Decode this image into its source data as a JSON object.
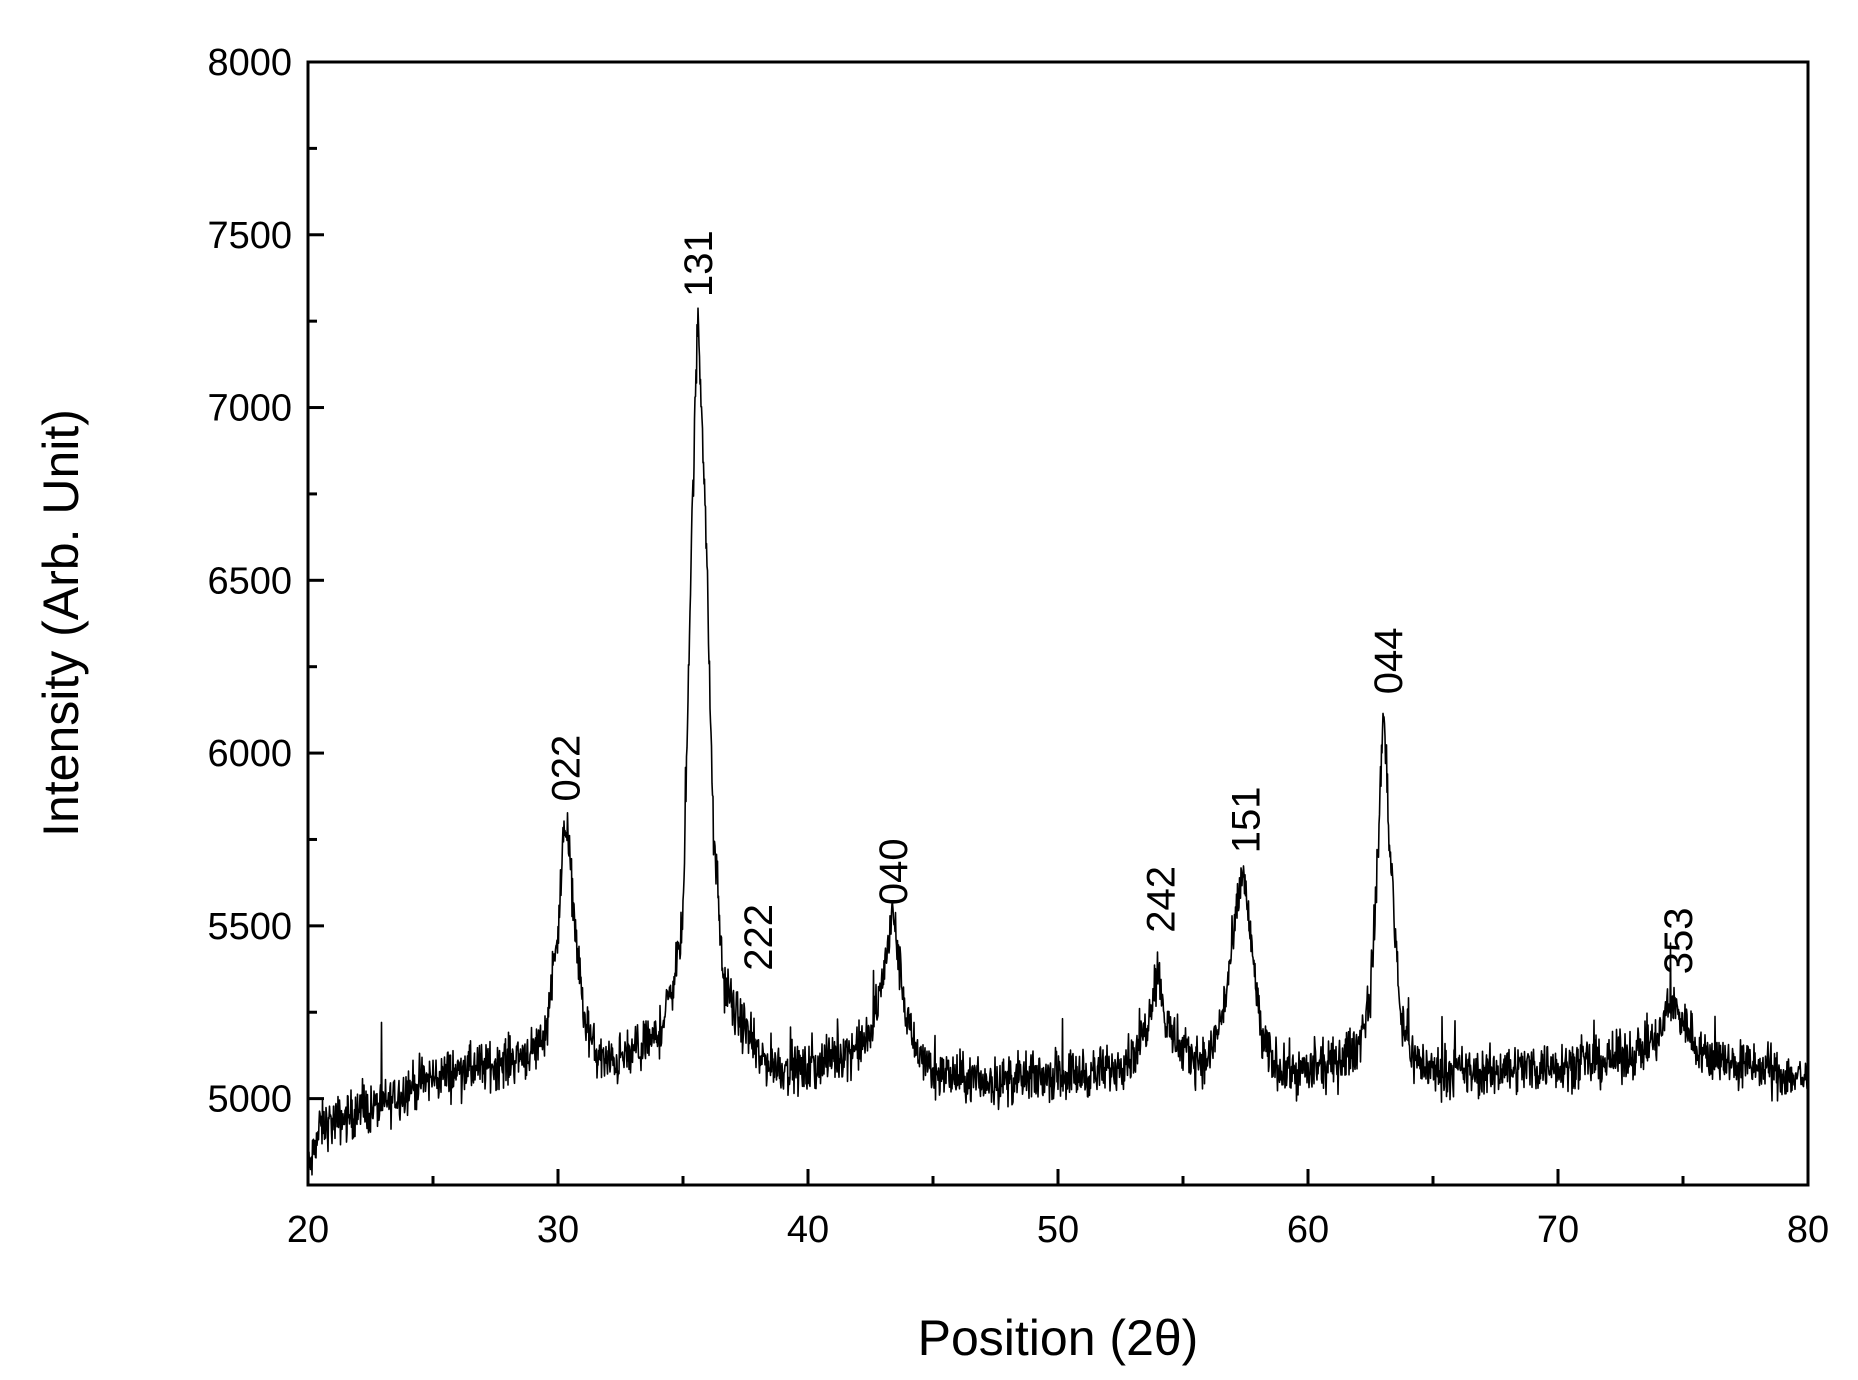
{
  "chart_data": {
    "type": "line",
    "title": "",
    "xlabel": "Position (2θ)",
    "ylabel": "Intensity (Arb. Unit)",
    "xlim": [
      20,
      80
    ],
    "ylim": [
      4750,
      8000
    ],
    "x_ticks": [
      20,
      30,
      40,
      50,
      60,
      70,
      80
    ],
    "y_ticks": [
      5000,
      5500,
      6000,
      6500,
      7000,
      7500,
      8000
    ],
    "grid": false,
    "line_color": "#000000",
    "baseline": [
      [
        20.0,
        4780
      ],
      [
        20.5,
        4920
      ],
      [
        21,
        4930
      ],
      [
        22,
        4960
      ],
      [
        23,
        4980
      ],
      [
        24,
        5030
      ],
      [
        25,
        5060
      ],
      [
        26,
        5080
      ],
      [
        27,
        5090
      ],
      [
        28,
        5110
      ],
      [
        29,
        5140
      ],
      [
        29.5,
        5190
      ],
      [
        30.0,
        5500
      ],
      [
        30.3,
        5820
      ],
      [
        30.6,
        5580
      ],
      [
        31.0,
        5250
      ],
      [
        31.5,
        5130
      ],
      [
        32,
        5100
      ],
      [
        33,
        5130
      ],
      [
        34,
        5180
      ],
      [
        34.5,
        5300
      ],
      [
        35.0,
        5500
      ],
      [
        35.3,
        6500
      ],
      [
        35.6,
        7280
      ],
      [
        35.9,
        6700
      ],
      [
        36.2,
        5800
      ],
      [
        36.6,
        5350
      ],
      [
        37.0,
        5260
      ],
      [
        37.5,
        5200
      ],
      [
        38,
        5120
      ],
      [
        39,
        5090
      ],
      [
        40,
        5080
      ],
      [
        41,
        5120
      ],
      [
        42,
        5150
      ],
      [
        42.5,
        5180
      ],
      [
        43.0,
        5350
      ],
      [
        43.4,
        5540
      ],
      [
        43.8,
        5300
      ],
      [
        44.2,
        5150
      ],
      [
        45,
        5080
      ],
      [
        46,
        5060
      ],
      [
        47,
        5050
      ],
      [
        48,
        5050
      ],
      [
        49,
        5060
      ],
      [
        50,
        5070
      ],
      [
        51,
        5070
      ],
      [
        52,
        5080
      ],
      [
        53,
        5130
      ],
      [
        53.5,
        5200
      ],
      [
        54.0,
        5380
      ],
      [
        54.3,
        5220
      ],
      [
        55,
        5130
      ],
      [
        56,
        5110
      ],
      [
        56.6,
        5250
      ],
      [
        57.0,
        5450
      ],
      [
        57.4,
        5670
      ],
      [
        57.8,
        5400
      ],
      [
        58.2,
        5150
      ],
      [
        59,
        5080
      ],
      [
        60,
        5080
      ],
      [
        61,
        5100
      ],
      [
        62,
        5150
      ],
      [
        62.5,
        5300
      ],
      [
        62.8,
        5700
      ],
      [
        63.0,
        6140
      ],
      [
        63.3,
        5700
      ],
      [
        63.7,
        5250
      ],
      [
        64.2,
        5120
      ],
      [
        65,
        5080
      ],
      [
        66,
        5080
      ],
      [
        67,
        5070
      ],
      [
        68,
        5090
      ],
      [
        69,
        5090
      ],
      [
        70,
        5100
      ],
      [
        71,
        5100
      ],
      [
        72,
        5110
      ],
      [
        73,
        5130
      ],
      [
        74,
        5170
      ],
      [
        74.5,
        5280
      ],
      [
        75.0,
        5230
      ],
      [
        75.5,
        5160
      ],
      [
        76,
        5120
      ],
      [
        77,
        5100
      ],
      [
        78,
        5090
      ],
      [
        79,
        5070
      ],
      [
        80,
        5060
      ]
    ],
    "annotations": [
      {
        "label": "022",
        "x": 30.3,
        "y": 5860
      },
      {
        "label": "131",
        "x": 35.6,
        "y": 7320
      },
      {
        "label": "222",
        "x": 38.0,
        "y": 5370
      },
      {
        "label": "040",
        "x": 43.4,
        "y": 5560
      },
      {
        "label": "242",
        "x": 54.1,
        "y": 5480
      },
      {
        "label": "151",
        "x": 57.5,
        "y": 5710
      },
      {
        "label": "044",
        "x": 63.2,
        "y": 6170
      },
      {
        "label": "353",
        "x": 74.8,
        "y": 5360
      }
    ]
  }
}
